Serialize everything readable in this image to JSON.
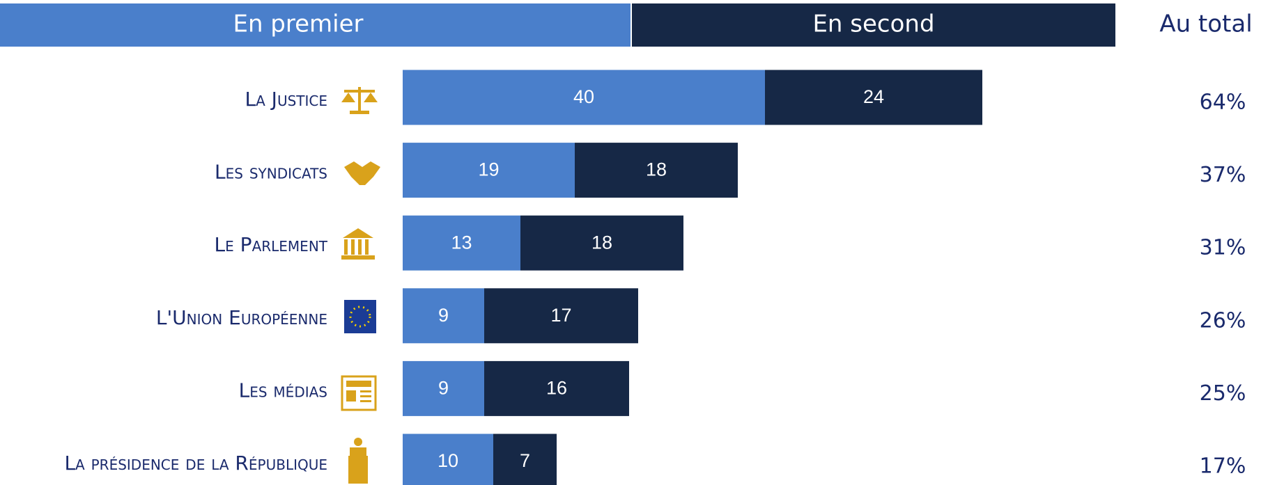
{
  "chart_data": {
    "type": "bar",
    "orientation": "horizontal",
    "stacked": true,
    "categories": [
      "La Justice",
      "Les syndicats",
      "Le Parlement",
      "L'Union Européenne",
      "Les médias",
      "La présidence de la République"
    ],
    "series": [
      {
        "name": "En premier",
        "color": "#4a7fcb",
        "values": [
          40,
          19,
          13,
          9,
          9,
          10
        ]
      },
      {
        "name": "En second",
        "color": "#162846",
        "values": [
          24,
          18,
          18,
          17,
          16,
          7
        ]
      }
    ],
    "totals": {
      "name": "Au total",
      "values": [
        64,
        37,
        31,
        26,
        25,
        17
      ],
      "value_labels": [
        "64%",
        "37%",
        "31%",
        "26%",
        "25%",
        "17%"
      ]
    }
  }
}
